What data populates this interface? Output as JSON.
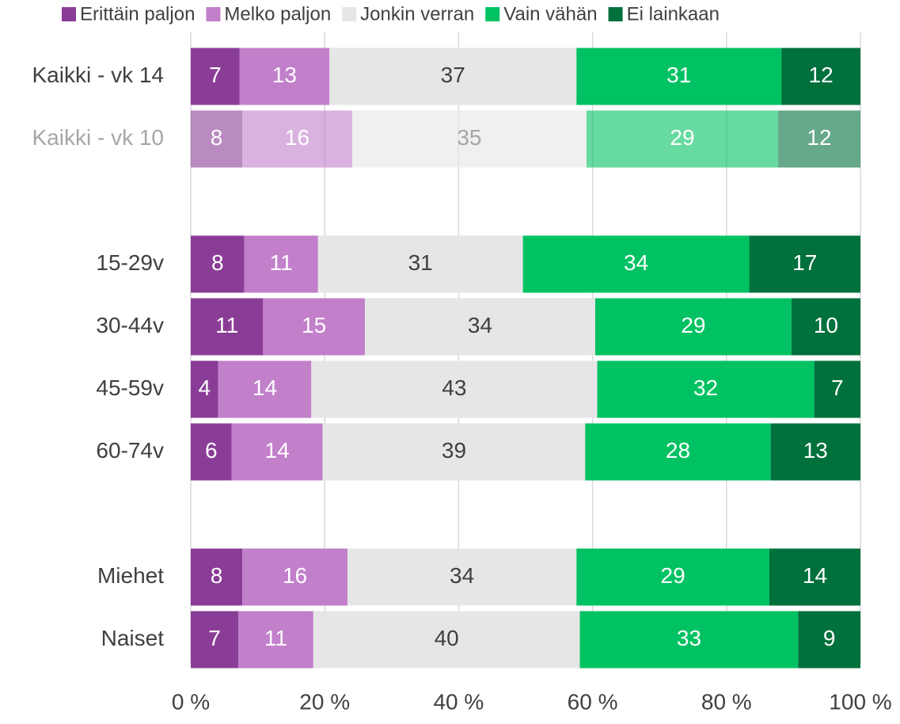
{
  "chart_data": {
    "type": "stacked_barh",
    "categories": [
      "Kaikki - vk 14",
      "Kaikki - vk 10",
      null,
      "15-29v",
      "30-44v",
      "45-59v",
      "60-74v",
      null,
      "Miehet",
      "Naiset"
    ],
    "series": [
      {
        "name": "Erittäin paljon",
        "color": "#8a3d96",
        "label_color": "#ffffff",
        "values": [
          7.3,
          7.7,
          null,
          8.0,
          10.8,
          4.1,
          6.1,
          null,
          7.7,
          7.1
        ],
        "value_labels": [
          "7",
          "8",
          null,
          "8",
          "11",
          "4",
          "6",
          null,
          "8",
          "7"
        ]
      },
      {
        "name": "Melko paljon",
        "color": "#c27fca",
        "label_color": "#ffffff",
        "values": [
          13.4,
          16.4,
          null,
          11.0,
          15.2,
          13.9,
          13.6,
          null,
          15.7,
          11.2
        ],
        "value_labels": [
          "13",
          "16",
          null,
          "11",
          "15",
          "14",
          "14",
          null,
          "16",
          "11"
        ]
      },
      {
        "name": "Jonkin verran",
        "color": "#e6e6e6",
        "label_color": "#404040",
        "values": [
          36.9,
          35.0,
          null,
          30.6,
          34.4,
          42.7,
          39.2,
          null,
          34.2,
          39.8
        ],
        "value_labels": [
          "37",
          "35",
          null,
          "31",
          "34",
          "43",
          "39",
          null,
          "34",
          "40"
        ]
      },
      {
        "name": "Vain vähän",
        "color": "#00c262",
        "label_color": "#ffffff",
        "values": [
          30.6,
          28.6,
          null,
          33.8,
          29.3,
          32.4,
          27.7,
          null,
          28.8,
          32.6
        ],
        "value_labels": [
          "31",
          "29",
          null,
          "34",
          "29",
          "32",
          "28",
          null,
          "29",
          "33"
        ]
      },
      {
        "name": "Ei lainkaan",
        "color": "#00703c",
        "label_color": "#ffffff",
        "values": [
          11.8,
          12.3,
          null,
          16.6,
          10.3,
          6.9,
          13.4,
          null,
          13.6,
          9.3
        ],
        "value_labels": [
          "12",
          "12",
          null,
          "17",
          "10",
          "7",
          "13",
          null,
          "14",
          "9"
        ]
      }
    ],
    "faded_categories": [
      1
    ],
    "faded_opacity": 0.6,
    "xlim": [
      0,
      100
    ],
    "xticks": [
      {
        "value": 0,
        "label": "0 %"
      },
      {
        "value": 20,
        "label": "20 %"
      },
      {
        "value": 40,
        "label": "40 %"
      },
      {
        "value": 60,
        "label": "60 %"
      },
      {
        "value": 80,
        "label": "80 %"
      },
      {
        "value": 100,
        "label": "100 %"
      }
    ],
    "grid": true,
    "legend": "top"
  }
}
